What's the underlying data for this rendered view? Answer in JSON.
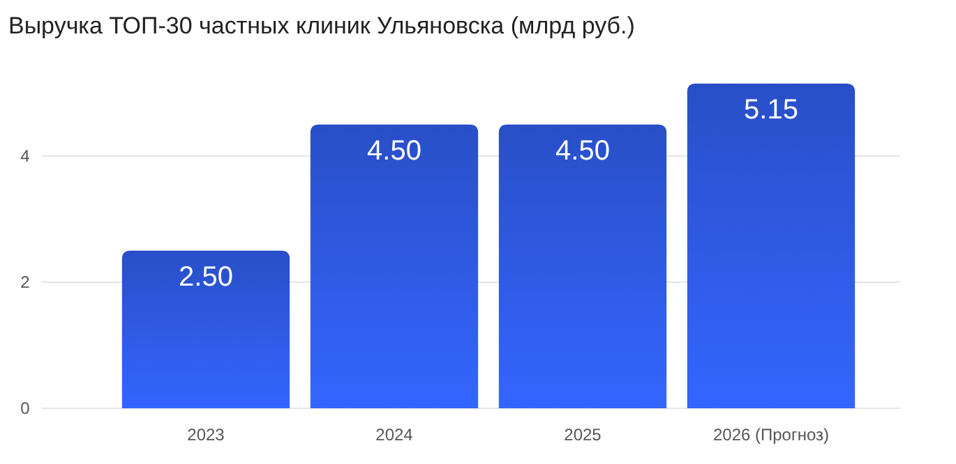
{
  "chart_data": {
    "type": "bar",
    "title": "Выручка ТОП-30 частных клиник Ульяновска (млрд руб.)",
    "categories": [
      "2023",
      "2024",
      "2025",
      "2026 (Прогноз)"
    ],
    "values": [
      2.5,
      4.5,
      4.5,
      5.15
    ],
    "value_labels": [
      "2.50",
      "4.50",
      "4.50",
      "5.15"
    ],
    "color": "#2f5be6",
    "ylim": [
      0,
      5.15
    ],
    "yticks": [
      0,
      2,
      4
    ],
    "grid": "y"
  }
}
